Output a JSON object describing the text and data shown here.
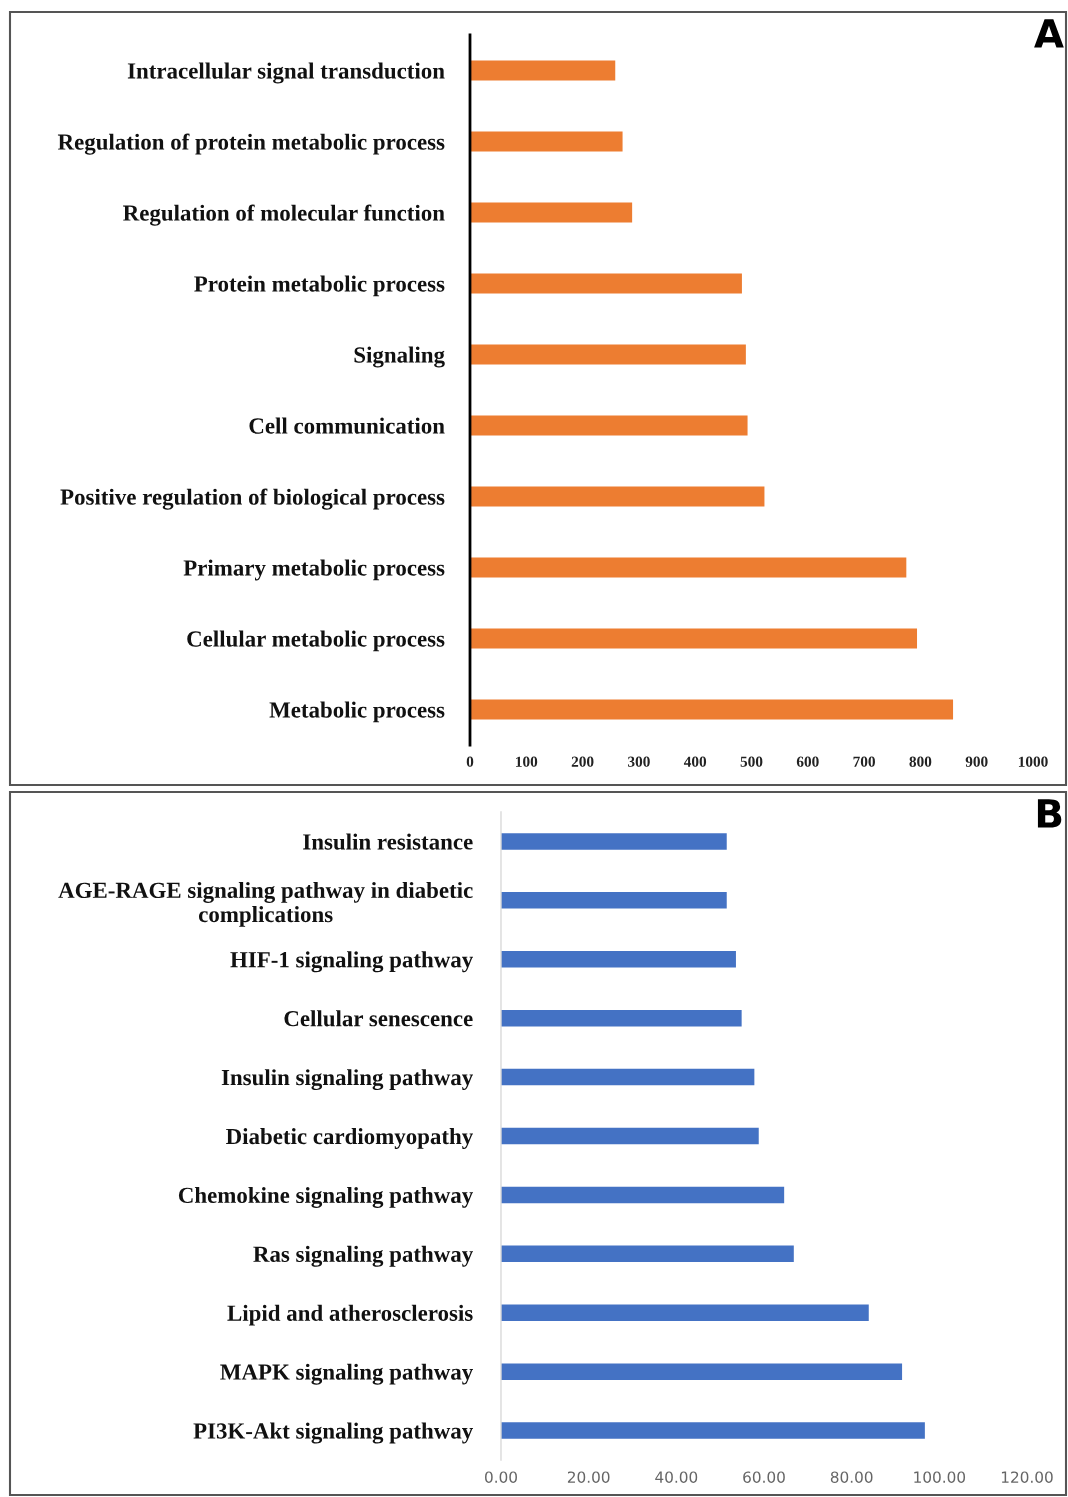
{
  "chart_data": [
    {
      "type": "bar",
      "orientation": "horizontal",
      "categories": [
        "Intracellular signal transduction",
        "Regulation of protein metabolic process",
        "Regulation of molecular function",
        "Protein metabolic process",
        "Signaling",
        "Cell communication",
        "Positive regulation of biological process",
        "Primary metabolic process",
        "Cellular metabolic process",
        "Metabolic process"
      ],
      "values": [
        258,
        271,
        288,
        483,
        490,
        493,
        523,
        775,
        794,
        858
      ],
      "color": "#ed7d31",
      "xlim": [
        0,
        1000
      ],
      "xticks": [
        0,
        100,
        200,
        300,
        400,
        500,
        600,
        700,
        800,
        900,
        1000
      ],
      "grid": false,
      "annotations": [
        "A"
      ]
    },
    {
      "type": "bar",
      "orientation": "horizontal",
      "categories": [
        "Insulin resistance",
        "AGE-RAGE signaling pathway in diabetic complications",
        "HIF-1 signaling pathway",
        "Cellular senescence",
        "Insulin signaling pathway",
        "Diabetic cardiomyopathy",
        "Chemokine signaling pathway",
        "Ras signaling pathway",
        "Lipid and atherosclerosis",
        "MAPK signaling pathway",
        "PI3K-Akt signaling pathway"
      ],
      "values": [
        51.5,
        51.5,
        53.6,
        54.9,
        57.8,
        58.8,
        64.6,
        66.8,
        83.9,
        91.5,
        96.7
      ],
      "color": "#4472c4",
      "xlim": [
        0,
        120
      ],
      "xticks": [
        {
          "value": 0,
          "label": "0.00"
        },
        {
          "value": 20,
          "label": "20.00"
        },
        {
          "value": 40,
          "label": "40.00"
        },
        {
          "value": 60,
          "label": "60.00"
        },
        {
          "value": 80,
          "label": "80.00"
        },
        {
          "value": 100,
          "label": "100.00"
        },
        {
          "value": 120,
          "label": "120.00"
        }
      ],
      "grid": false,
      "annotations": [
        "B"
      ]
    }
  ]
}
